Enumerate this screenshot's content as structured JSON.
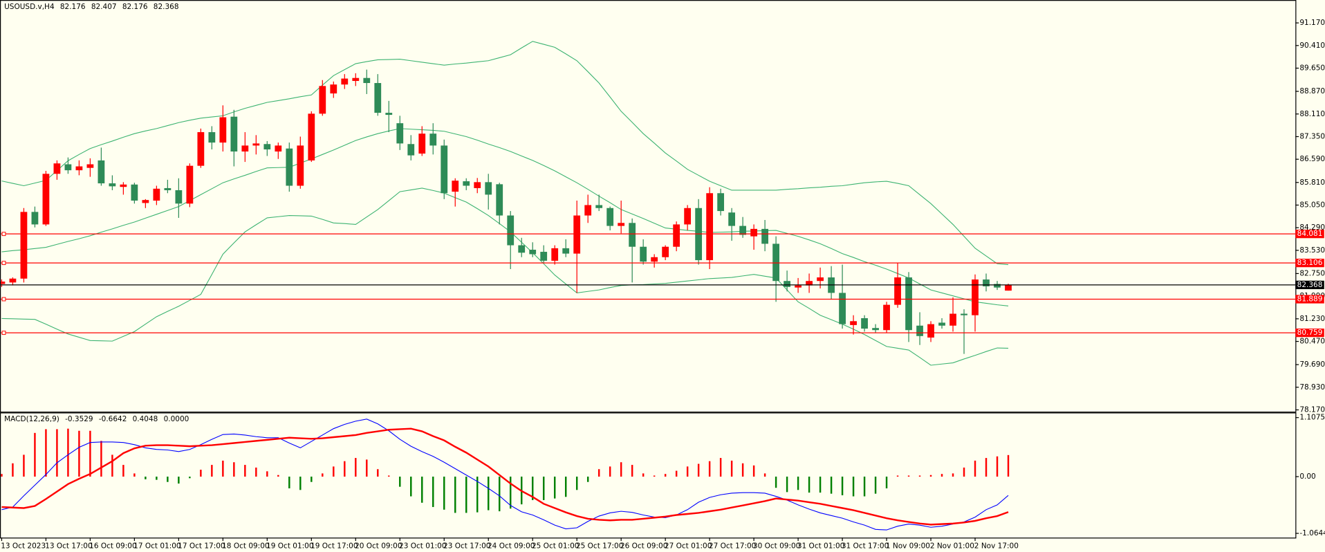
{
  "chart_data": [
    {
      "type": "candlestick",
      "title": "USOUSD.v,H4",
      "categories": [
        "13 Oct 2023",
        null,
        null,
        null,
        "13 Oct 17:00",
        null,
        null,
        null,
        "16 Oct 09:00",
        null,
        null,
        null,
        "17 Oct 01:00",
        null,
        null,
        null,
        "17 Oct 17:00",
        null,
        null,
        null,
        "18 Oct 09:00",
        null,
        null,
        null,
        "19 Oct 01:00",
        null,
        null,
        null,
        "19 Oct 17:00",
        null,
        null,
        null,
        "20 Oct 09:00",
        null,
        null,
        null,
        "23 Oct 01:00",
        null,
        null,
        null,
        "23 Oct 17:00",
        null,
        null,
        null,
        "24 Oct 09:00",
        null,
        null,
        null,
        "25 Oct 01:00",
        null,
        null,
        null,
        "25 Oct 17:00",
        null,
        null,
        null,
        "26 Oct 09:00",
        null,
        null,
        null,
        "27 Oct 01:00",
        null,
        null,
        null,
        "27 Oct 17:00",
        null,
        null,
        null,
        "30 Oct 09:00",
        null,
        null,
        null,
        "31 Oct 01:00",
        null,
        null,
        null,
        "31 Oct 17:00",
        null,
        null,
        null,
        "1 Nov 09:00",
        null,
        null,
        null,
        "2 Nov 01:00",
        null,
        null,
        null,
        "2 Nov 17:00",
        null,
        null,
        null
      ],
      "open": [
        82.4,
        82.45,
        82.58,
        84.82,
        84.4,
        86.1,
        86.42,
        86.22,
        86.3,
        86.55,
        85.78,
        85.66,
        85.74,
        85.12,
        85.2,
        85.62,
        85.55,
        85.1,
        86.37,
        87.5,
        87.15,
        88.02,
        86.85,
        87.05,
        87.1,
        86.85,
        86.95,
        85.7,
        86.55,
        88.12,
        88.8,
        89.1,
        89.22,
        89.32,
        89.15,
        88.15,
        87.8,
        87.1,
        86.78,
        87.45,
        87.05,
        85.5,
        85.85,
        85.62,
        85.82,
        85.75,
        84.7,
        83.7,
        83.55,
        83.48,
        83.18,
        83.6,
        83.42,
        84.7,
        85.05,
        84.95,
        84.35,
        84.45,
        83.65,
        83.15,
        83.3,
        83.65,
        84.4,
        84.95,
        83.2,
        85.45,
        84.8,
        84.35,
        84.0,
        84.25,
        83.75,
        82.5,
        82.28,
        82.35,
        82.5,
        82.62,
        82.1,
        81.02,
        81.25,
        80.92,
        80.85,
        81.7,
        82.62,
        81.0,
        80.6,
        81.1,
        81.0,
        81.4,
        81.35,
        82.55,
        82.4,
        82.176
      ],
      "high": [
        82.55,
        82.62,
        84.95,
        85.0,
        86.2,
        86.55,
        86.65,
        86.55,
        86.62,
        86.98,
        86.05,
        85.82,
        85.8,
        85.25,
        85.7,
        85.9,
        85.95,
        86.45,
        87.62,
        87.7,
        88.4,
        88.25,
        87.5,
        87.4,
        87.2,
        87.15,
        87.15,
        87.35,
        88.2,
        89.25,
        89.2,
        89.45,
        89.48,
        89.6,
        89.45,
        88.55,
        88.05,
        87.4,
        87.7,
        87.8,
        87.25,
        85.95,
        85.95,
        85.96,
        86.1,
        85.8,
        84.85,
        83.95,
        83.8,
        83.7,
        83.7,
        83.9,
        85.2,
        85.4,
        85.4,
        85.0,
        85.2,
        84.6,
        83.9,
        83.4,
        83.7,
        84.5,
        85.05,
        85.25,
        85.65,
        85.6,
        84.95,
        84.65,
        84.4,
        84.55,
        84.0,
        82.85,
        82.6,
        82.75,
        82.95,
        83.0,
        83.05,
        81.35,
        81.35,
        81.05,
        81.8,
        83.1,
        82.8,
        81.45,
        81.15,
        81.25,
        81.95,
        81.55,
        82.72,
        82.75,
        82.5,
        82.407
      ],
      "low": [
        82.3,
        82.35,
        82.45,
        84.3,
        84.35,
        85.9,
        86.1,
        86.05,
        86.0,
        85.7,
        85.55,
        85.4,
        85.1,
        84.95,
        85.05,
        85.45,
        84.62,
        84.98,
        86.3,
        86.92,
        86.85,
        86.35,
        86.5,
        86.75,
        86.7,
        86.6,
        85.5,
        85.6,
        86.5,
        88.05,
        88.65,
        88.95,
        89.05,
        88.78,
        88.05,
        87.5,
        86.9,
        86.55,
        86.7,
        86.75,
        85.25,
        85.0,
        85.55,
        85.45,
        84.9,
        84.4,
        82.9,
        83.3,
        83.3,
        83.1,
        83.05,
        83.3,
        82.1,
        84.45,
        84.85,
        84.2,
        84.1,
        82.45,
        83.05,
        82.95,
        83.2,
        83.5,
        84.2,
        83.05,
        82.9,
        84.7,
        83.85,
        83.95,
        83.55,
        83.5,
        81.8,
        82.15,
        82.1,
        82.1,
        82.25,
        81.9,
        80.9,
        80.7,
        80.8,
        80.75,
        80.75,
        81.6,
        80.45,
        80.35,
        80.45,
        80.9,
        80.8,
        80.05,
        80.8,
        82.15,
        82.2,
        82.176
      ],
      "close": [
        82.48,
        82.58,
        84.82,
        84.4,
        86.1,
        86.45,
        86.22,
        86.35,
        86.42,
        85.78,
        85.68,
        85.74,
        85.2,
        85.22,
        85.6,
        85.55,
        85.1,
        86.37,
        87.5,
        87.15,
        88.0,
        86.85,
        87.05,
        87.12,
        86.92,
        87.05,
        85.7,
        87.05,
        88.12,
        89.05,
        89.1,
        89.3,
        89.32,
        89.15,
        88.15,
        88.08,
        87.12,
        86.72,
        87.45,
        87.05,
        85.45,
        85.87,
        85.7,
        85.82,
        85.4,
        84.7,
        83.7,
        83.45,
        83.4,
        83.18,
        83.6,
        83.42,
        84.7,
        85.05,
        84.95,
        84.35,
        84.45,
        83.65,
        83.15,
        83.3,
        83.65,
        84.4,
        84.95,
        83.2,
        85.45,
        84.85,
        84.35,
        84.05,
        84.25,
        83.75,
        82.5,
        82.3,
        82.35,
        82.5,
        82.62,
        82.1,
        81.05,
        81.15,
        80.9,
        80.85,
        81.7,
        82.62,
        80.85,
        80.65,
        81.05,
        81.0,
        81.4,
        81.35,
        82.55,
        82.32,
        82.28,
        82.368
      ],
      "up_color": "#ff0000",
      "down_color": "#2e8b57",
      "bands": {
        "color": "#3cb371",
        "upper": [
          85.86,
          85.78,
          85.7,
          85.79,
          85.88,
          86.21,
          86.54,
          86.75,
          86.95,
          87.08,
          87.2,
          87.33,
          87.45,
          87.54,
          87.62,
          87.72,
          87.82,
          87.9,
          87.97,
          88.01,
          88.05,
          88.18,
          88.3,
          88.4,
          88.5,
          88.56,
          88.62,
          88.69,
          88.75,
          89.08,
          89.4,
          89.6,
          89.8,
          89.87,
          89.93,
          89.94,
          89.95,
          89.9,
          89.85,
          89.8,
          89.75,
          89.79,
          89.82,
          89.86,
          89.9,
          90.0,
          90.1,
          90.33,
          90.55,
          90.45,
          90.35,
          90.13,
          89.9,
          89.53,
          89.15,
          88.68,
          88.2,
          87.83,
          87.45,
          87.13,
          86.8,
          86.53,
          86.25,
          86.05,
          85.85,
          85.7,
          85.55,
          85.55,
          85.55,
          85.55,
          85.55,
          85.58,
          85.6,
          85.63,
          85.65,
          85.68,
          85.7,
          85.75,
          85.8,
          85.83,
          85.85,
          85.78,
          85.7,
          85.4,
          85.1,
          84.75,
          84.4,
          84.0,
          83.6,
          83.34,
          83.08,
          83.05
        ],
        "middle": [
          83.48,
          83.52,
          83.55,
          83.59,
          83.63,
          83.73,
          83.83,
          83.92,
          84.02,
          84.14,
          84.25,
          84.37,
          84.48,
          84.61,
          84.74,
          84.87,
          85.0,
          85.2,
          85.4,
          85.6,
          85.8,
          85.93,
          86.05,
          86.18,
          86.3,
          86.31,
          86.32,
          86.46,
          86.6,
          86.75,
          86.9,
          87.06,
          87.22,
          87.34,
          87.45,
          87.54,
          87.62,
          87.6,
          87.58,
          87.56,
          87.53,
          87.44,
          87.35,
          87.23,
          87.1,
          86.98,
          86.85,
          86.7,
          86.55,
          86.38,
          86.2,
          86.0,
          85.8,
          85.58,
          85.35,
          85.13,
          84.9,
          84.75,
          84.6,
          84.44,
          84.28,
          84.24,
          84.2,
          84.17,
          84.13,
          84.14,
          84.15,
          84.17,
          84.18,
          84.19,
          84.2,
          84.1,
          84.0,
          83.88,
          83.75,
          83.59,
          83.42,
          83.29,
          83.15,
          83.03,
          82.9,
          82.75,
          82.6,
          82.4,
          82.2,
          82.1,
          82.0,
          81.9,
          81.8,
          81.75,
          81.7,
          81.66
        ],
        "lower": [
          81.24,
          81.23,
          81.22,
          81.21,
          81.05,
          80.88,
          80.72,
          80.61,
          80.5,
          80.49,
          80.48,
          80.64,
          80.8,
          81.05,
          81.3,
          81.48,
          81.65,
          81.85,
          82.05,
          82.72,
          83.4,
          83.78,
          84.15,
          84.39,
          84.62,
          84.66,
          84.7,
          84.69,
          84.68,
          84.57,
          84.45,
          84.43,
          84.4,
          84.65,
          84.9,
          85.2,
          85.5,
          85.56,
          85.62,
          85.54,
          85.45,
          85.3,
          85.15,
          84.93,
          84.7,
          84.43,
          84.15,
          83.8,
          83.45,
          83.08,
          82.7,
          82.4,
          82.1,
          82.15,
          82.2,
          82.28,
          82.35,
          82.37,
          82.38,
          82.4,
          82.42,
          82.46,
          82.5,
          82.54,
          82.58,
          82.6,
          82.62,
          82.67,
          82.72,
          82.66,
          82.6,
          82.2,
          81.8,
          81.58,
          81.35,
          81.2,
          81.05,
          80.88,
          80.7,
          80.5,
          80.3,
          80.24,
          80.18,
          79.93,
          79.67,
          79.71,
          79.75,
          79.88,
          80.0,
          80.13,
          80.25,
          80.24
        ]
      },
      "hlines": [
        {
          "value": 84.081,
          "color": "#ff0000"
        },
        {
          "value": 83.106,
          "color": "#ff0000"
        },
        {
          "value": 81.889,
          "color": "#ff0000"
        },
        {
          "value": 80.759,
          "color": "#ff0000"
        }
      ],
      "last_price_color": "#000000",
      "ylim": [
        78.11,
        91.91
      ],
      "yticks": [
        {
          "value": 91.17,
          "label": "91.170"
        },
        {
          "value": 90.41,
          "label": "90.410"
        },
        {
          "value": 89.65,
          "label": "89.650"
        },
        {
          "value": 88.87,
          "label": "88.870"
        },
        {
          "value": 88.11,
          "label": "88.110"
        },
        {
          "value": 87.35,
          "label": "87.350"
        },
        {
          "value": 86.59,
          "label": "86.590"
        },
        {
          "value": 85.81,
          "label": "85.810"
        },
        {
          "value": 85.05,
          "label": "85.050"
        },
        {
          "value": 84.29,
          "label": "84.290"
        },
        {
          "value": 83.53,
          "label": "83.530"
        },
        {
          "value": 82.75,
          "label": "82.750"
        },
        {
          "value": 81.99,
          "label": "81.990"
        },
        {
          "value": 81.23,
          "label": "81.230"
        },
        {
          "value": 80.47,
          "label": "80.470"
        },
        {
          "value": 79.69,
          "label": "79.690"
        },
        {
          "value": 78.93,
          "label": "78.930"
        },
        {
          "value": 78.17,
          "label": "78.170"
        }
      ]
    },
    {
      "type": "macd",
      "title": "MACD(12,26,9)",
      "histogram": [
        0.05,
        0.25,
        0.41,
        0.82,
        0.89,
        0.89,
        0.9,
        0.86,
        0.86,
        0.67,
        0.41,
        0.22,
        0.06,
        -0.05,
        -0.06,
        -0.1,
        -0.13,
        -0.03,
        0.13,
        0.22,
        0.3,
        0.27,
        0.22,
        0.17,
        0.1,
        0.03,
        -0.22,
        -0.25,
        -0.1,
        0.06,
        0.19,
        0.29,
        0.35,
        0.32,
        0.14,
        0.02,
        -0.19,
        -0.37,
        -0.49,
        -0.57,
        -0.62,
        -0.68,
        -0.68,
        -0.67,
        -0.63,
        -0.65,
        -0.6,
        -0.52,
        -0.44,
        -0.44,
        -0.41,
        -0.38,
        -0.25,
        -0.1,
        0.14,
        0.19,
        0.27,
        0.22,
        0.06,
        0.02,
        0.05,
        0.11,
        0.19,
        0.24,
        0.29,
        0.35,
        0.3,
        0.25,
        0.21,
        0.06,
        -0.21,
        -0.29,
        -0.25,
        -0.3,
        -0.3,
        -0.32,
        -0.35,
        -0.37,
        -0.37,
        -0.32,
        -0.22,
        0.02,
        0.02,
        0.02,
        0.03,
        0.05,
        0.06,
        0.17,
        0.3,
        0.35,
        0.38,
        0.4048
      ],
      "up_color": "#ff0000",
      "down_color": "#008000",
      "macd": {
        "color": "#0000ff",
        "values": [
          -0.62,
          -0.57,
          -0.36,
          -0.16,
          0.04,
          0.26,
          0.41,
          0.55,
          0.64,
          0.65,
          0.65,
          0.64,
          0.6,
          0.54,
          0.51,
          0.5,
          0.47,
          0.51,
          0.6,
          0.7,
          0.79,
          0.8,
          0.78,
          0.75,
          0.73,
          0.73,
          0.63,
          0.54,
          0.66,
          0.78,
          0.9,
          0.98,
          1.04,
          1.08,
          0.99,
          0.86,
          0.7,
          0.57,
          0.47,
          0.38,
          0.27,
          0.15,
          0.03,
          -0.09,
          -0.22,
          -0.36,
          -0.54,
          -0.66,
          -0.72,
          -0.81,
          -0.91,
          -0.98,
          -0.96,
          -0.84,
          -0.74,
          -0.68,
          -0.65,
          -0.67,
          -0.72,
          -0.76,
          -0.77,
          -0.72,
          -0.62,
          -0.48,
          -0.39,
          -0.34,
          -0.31,
          -0.3,
          -0.3,
          -0.31,
          -0.37,
          -0.44,
          -0.53,
          -0.61,
          -0.68,
          -0.73,
          -0.78,
          -0.85,
          -0.91,
          -0.99,
          -1.0,
          -0.93,
          -0.89,
          -0.91,
          -0.95,
          -0.93,
          -0.89,
          -0.85,
          -0.76,
          -0.62,
          -0.53,
          -0.3529
        ]
      },
      "signal": {
        "color": "#ff0000",
        "values": [
          -0.57,
          -0.58,
          -0.59,
          -0.55,
          -0.42,
          -0.28,
          -0.14,
          -0.04,
          0.05,
          0.17,
          0.29,
          0.44,
          0.53,
          0.58,
          0.59,
          0.59,
          0.58,
          0.57,
          0.58,
          0.59,
          0.61,
          0.63,
          0.65,
          0.67,
          0.69,
          0.71,
          0.73,
          0.72,
          0.71,
          0.72,
          0.74,
          0.76,
          0.78,
          0.82,
          0.85,
          0.88,
          0.89,
          0.9,
          0.85,
          0.76,
          0.68,
          0.56,
          0.45,
          0.32,
          0.19,
          0.03,
          -0.13,
          -0.27,
          -0.38,
          -0.51,
          -0.59,
          -0.67,
          -0.74,
          -0.79,
          -0.81,
          -0.82,
          -0.81,
          -0.81,
          -0.79,
          -0.77,
          -0.75,
          -0.72,
          -0.7,
          -0.68,
          -0.65,
          -0.62,
          -0.58,
          -0.54,
          -0.5,
          -0.46,
          -0.41,
          -0.43,
          -0.45,
          -0.48,
          -0.51,
          -0.55,
          -0.59,
          -0.63,
          -0.68,
          -0.73,
          -0.78,
          -0.82,
          -0.85,
          -0.88,
          -0.9,
          -0.89,
          -0.88,
          -0.86,
          -0.83,
          -0.78,
          -0.74,
          -0.6642
        ]
      },
      "empty_buffer": {
        "value": 0,
        "label": "0.0000"
      },
      "ylim": [
        -1.144,
        1.187
      ],
      "yticks": [
        1.1075,
        {
          "value": 0,
          "label": "0.00"
        },
        -1.0644
      ]
    }
  ]
}
